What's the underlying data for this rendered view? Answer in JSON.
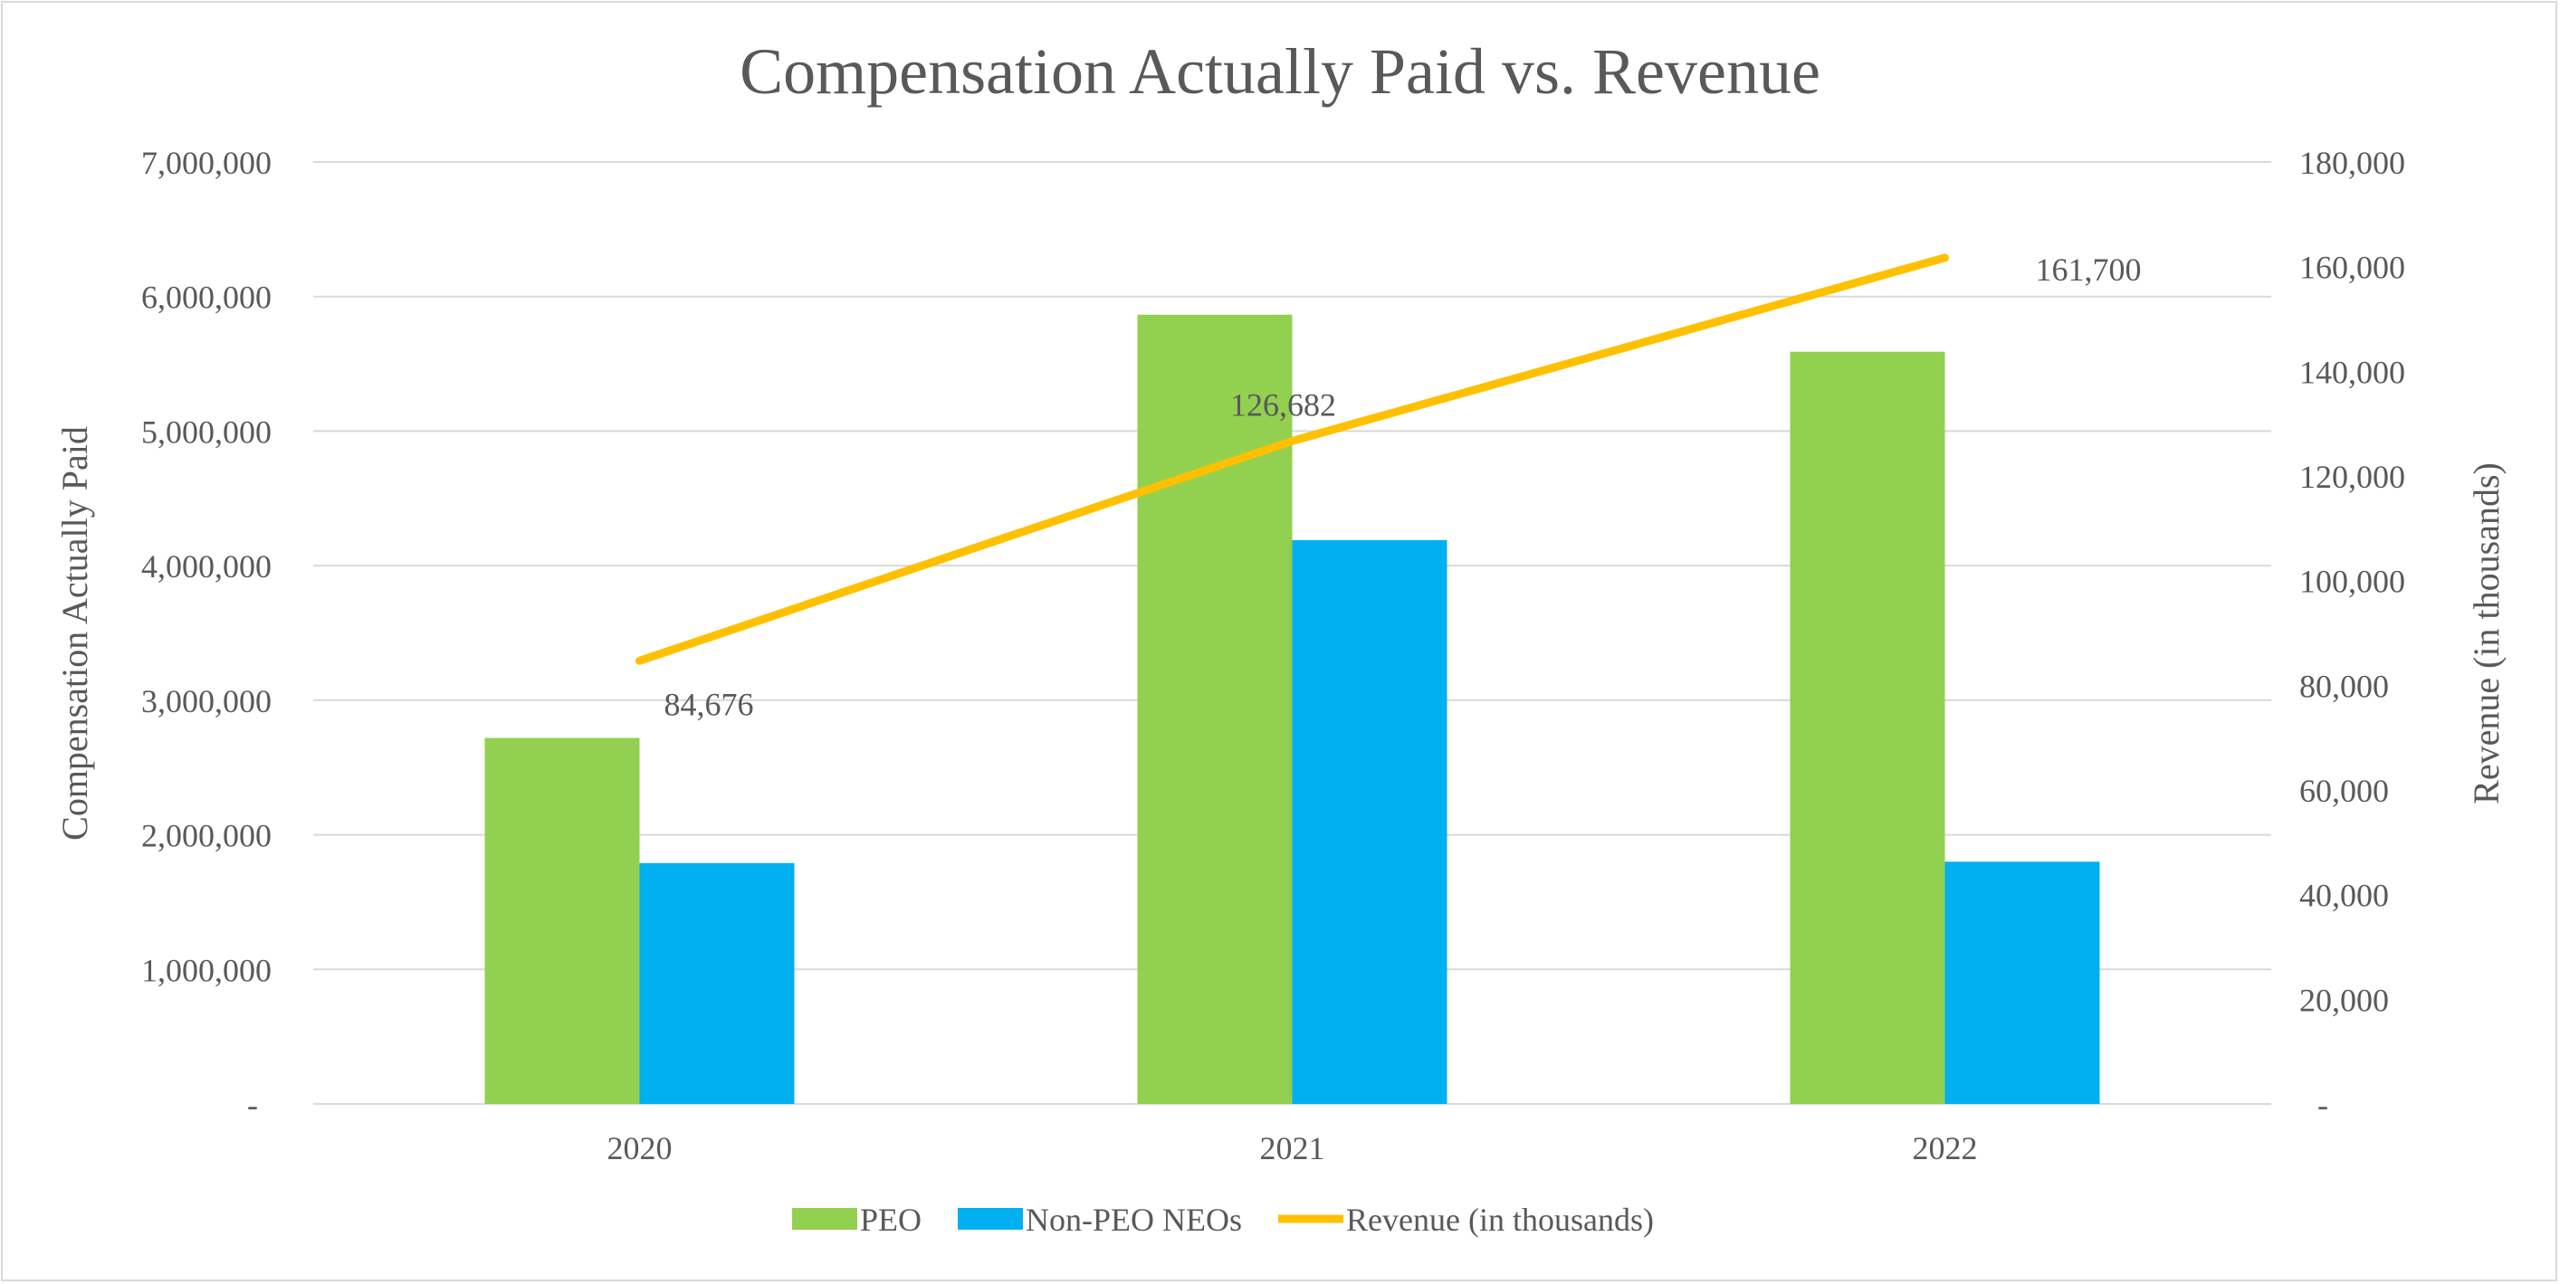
{
  "chart_data": {
    "type": "bar",
    "title": "Compensation Actually Paid vs. Revenue",
    "categories": [
      "2020",
      "2021",
      "2022"
    ],
    "ylabel": "Compensation Actually Paid",
    "y2label": "Revenue  (in thousands)",
    "ylim": [
      0,
      7000000
    ],
    "y2lim": [
      0,
      180000
    ],
    "yticks": [
      "-",
      "1,000,000",
      "2,000,000",
      "3,000,000",
      "4,000,000",
      "5,000,000",
      "6,000,000",
      "7,000,000"
    ],
    "y2ticks": [
      "-",
      "20,000",
      "40,000",
      "60,000",
      "80,000",
      "100,000",
      "120,000",
      "140,000",
      "160,000",
      "180,000"
    ],
    "grid": true,
    "legend_position": "bottom",
    "series": [
      {
        "name": "PEO",
        "type": "bar",
        "axis": "left",
        "color": "#92d050",
        "values": [
          2720000,
          5865000,
          5590000
        ]
      },
      {
        "name": "Non-PEO NEOs",
        "type": "bar",
        "axis": "left",
        "color": "#00b0f0",
        "values": [
          1790000,
          4190000,
          1800000
        ]
      },
      {
        "name": "Revenue (in thousands)",
        "type": "line",
        "axis": "right",
        "color": "#ffc000",
        "values": [
          84676,
          126682,
          161700
        ],
        "labels": [
          "84,676",
          "126,682",
          "161,700"
        ]
      }
    ]
  }
}
